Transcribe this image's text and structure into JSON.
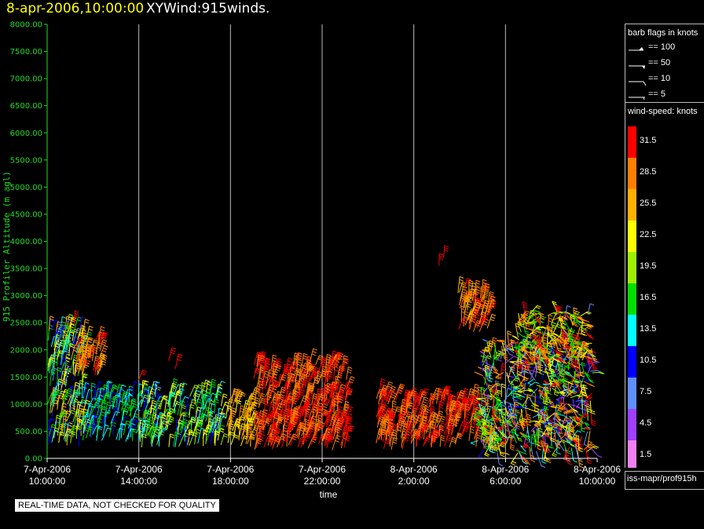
{
  "header": {
    "date": "8-apr-2006,10:00:00",
    "name": "XYWind:915winds."
  },
  "colors": {
    "axis_text": "#22dd22",
    "date_title": "#ffff00",
    "background": "#000000"
  },
  "chart_data": {
    "type": "scatter",
    "ylabel": "915 Profiler Altitude (m agl)",
    "xlabel": "time",
    "ylim": [
      0,
      8000
    ],
    "yticks": [
      0,
      500,
      1000,
      1500,
      2000,
      2500,
      3000,
      3500,
      4000,
      4500,
      5000,
      5500,
      6000,
      6500,
      7000,
      7500,
      8000
    ],
    "ytick_labels": [
      "0.00",
      "500.00",
      "1000.00",
      "1500.00",
      "2000.00",
      "2500.00",
      "3000.00",
      "3500.00",
      "4000.00",
      "4500.00",
      "5000.00",
      "5500.00",
      "6000.00",
      "6500.00",
      "7000.00",
      "7500.00",
      "8000.00"
    ],
    "xlim_hours": [
      0,
      24
    ],
    "xticks": [
      {
        "hour": 0,
        "date": "7-Apr-2006",
        "time": "10:00:00"
      },
      {
        "hour": 4,
        "date": "7-Apr-2006",
        "time": "14:00:00"
      },
      {
        "hour": 8,
        "date": "7-Apr-2006",
        "time": "18:00:00"
      },
      {
        "hour": 12,
        "date": "7-Apr-2006",
        "time": "22:00:00"
      },
      {
        "hour": 16,
        "date": "8-Apr-2006",
        "time": "2:00:00"
      },
      {
        "hour": 20,
        "date": "8-Apr-2006",
        "time": "6:00:00"
      },
      {
        "hour": 24,
        "date": "8-Apr-2006",
        "time": "10:00:00"
      }
    ],
    "grid": "vertical",
    "clusters": [
      {
        "h0": 0.0,
        "h1": 1.6,
        "z0": 200,
        "z1": 2400,
        "speed": [
          8,
          26
        ],
        "slant": "hi"
      },
      {
        "h0": 1.2,
        "h1": 2.4,
        "z0": 1500,
        "z1": 2150,
        "speed": [
          24,
          32
        ],
        "slant": "hi"
      },
      {
        "h0": 1.5,
        "h1": 4.2,
        "z0": 300,
        "z1": 1150,
        "speed": [
          9,
          18
        ],
        "slant": "hi"
      },
      {
        "h0": 4.0,
        "h1": 7.6,
        "z0": 200,
        "z1": 1200,
        "speed": [
          10,
          24
        ],
        "slant": "hi"
      },
      {
        "h0": 7.8,
        "h1": 9.0,
        "z0": 200,
        "z1": 1100,
        "speed": [
          22,
          29
        ],
        "slant": "hi"
      },
      {
        "h0": 9.0,
        "h1": 13.1,
        "z0": 150,
        "z1": 1750,
        "speed": [
          27,
          33
        ],
        "slant": "hi"
      },
      {
        "h0": 14.3,
        "h1": 15.6,
        "z0": 150,
        "z1": 1200,
        "speed": [
          27,
          33
        ],
        "slant": "hi"
      },
      {
        "h0": 15.6,
        "h1": 18.9,
        "z0": 200,
        "z1": 1100,
        "speed": [
          27,
          33
        ],
        "slant": "hi"
      },
      {
        "h0": 17.9,
        "h1": 19.3,
        "z0": 2300,
        "z1": 3100,
        "speed": [
          25,
          33
        ],
        "slant": "hi"
      },
      {
        "h0": 18.8,
        "h1": 20.0,
        "z0": 300,
        "z1": 1200,
        "speed": [
          14,
          26
        ],
        "slant": "any"
      },
      {
        "h0": 19.0,
        "h1": 23.8,
        "z0": 100,
        "z1": 2200,
        "speed": [
          3,
          33
        ],
        "slant": "any"
      },
      {
        "h0": 20.5,
        "h1": 23.5,
        "z0": 1800,
        "z1": 2700,
        "speed": [
          15,
          33
        ],
        "slant": "any"
      }
    ],
    "isolated": [
      {
        "h": 1.2,
        "z": 2450,
        "speed": 31
      },
      {
        "h": 5.3,
        "z": 1800,
        "speed": 31
      },
      {
        "h": 5.6,
        "z": 1650,
        "speed": 31
      },
      {
        "h": 4.0,
        "z": 1450,
        "speed": 31
      },
      {
        "h": 17.3,
        "z": 3700,
        "speed": 31
      },
      {
        "h": 17.1,
        "z": 3550,
        "speed": 31
      },
      {
        "h": 22.6,
        "z": 2550,
        "speed": 8
      },
      {
        "h": 23.6,
        "z": 2650,
        "speed": 8
      }
    ]
  },
  "legend": {
    "flags_title": "barb flags in knots",
    "flags": [
      "== 100",
      "== 50",
      "== 10",
      "== 5"
    ],
    "speed_title": "wind-speed: knots",
    "speeds": [
      {
        "label": "31.5",
        "color": "#ff0000"
      },
      {
        "label": "28.5",
        "color": "#ff7f00"
      },
      {
        "label": "25.5",
        "color": "#ffb000"
      },
      {
        "label": "22.5",
        "color": "#ffff00"
      },
      {
        "label": "19.5",
        "color": "#a0ee00"
      },
      {
        "label": "16.5",
        "color": "#00dd00"
      },
      {
        "label": "13.5",
        "color": "#00ffff"
      },
      {
        "label": "10.5",
        "color": "#0000ff"
      },
      {
        "label": "7.5",
        "color": "#5f8fff"
      },
      {
        "label": "4.5",
        "color": "#a040ff"
      },
      {
        "label": "1.5",
        "color": "#f080f0"
      }
    ],
    "footer": "iss-mapr/prof915h"
  },
  "notice": "REAL-TIME DATA, NOT CHECKED FOR QUALITY"
}
